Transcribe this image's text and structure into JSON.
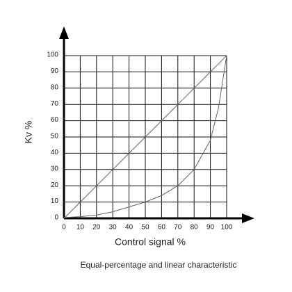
{
  "chart_data": {
    "type": "line",
    "xlabel": "Control signal  %",
    "ylabel": "Kv  %",
    "caption": "Equal-percentage and linear characteristic",
    "x": [
      0,
      10,
      20,
      30,
      40,
      50,
      60,
      70,
      80,
      90,
      95,
      100
    ],
    "series": [
      {
        "color": "#666666",
        "values": [
          0,
          10,
          20,
          30,
          40,
          50,
          60,
          70,
          80,
          90,
          95,
          100
        ]
      },
      {
        "color": "#666666",
        "values": [
          0.5,
          1,
          2,
          4,
          7,
          10,
          14,
          20,
          30,
          48,
          68,
          100
        ]
      }
    ],
    "xlim": [
      0,
      100
    ],
    "ylim": [
      0,
      100
    ],
    "xticks": [
      0,
      10,
      20,
      30,
      40,
      50,
      60,
      70,
      80,
      90,
      100
    ],
    "yticks": [
      0,
      10,
      20,
      30,
      40,
      50,
      60,
      70,
      80,
      90,
      100
    ],
    "grid": true
  }
}
